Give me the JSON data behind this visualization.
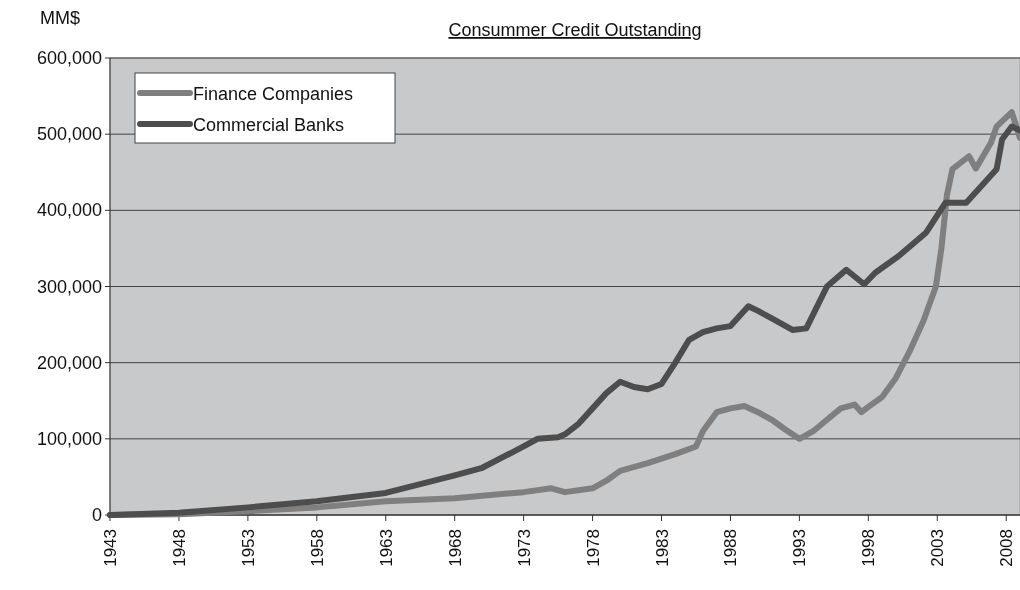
{
  "chart_data": {
    "type": "line",
    "title": "Consummer Credit Outstanding",
    "ylabel": "MM$",
    "xlim": [
      1943,
      2009
    ],
    "xticks": [
      1943,
      1948,
      1953,
      1958,
      1963,
      1968,
      1973,
      1978,
      1983,
      1988,
      1993,
      1998,
      2003,
      2008
    ],
    "ylim": [
      0,
      600000
    ],
    "yticks": [
      {
        "value": 0,
        "label": "0"
      },
      {
        "value": 100000,
        "label": "100,000"
      },
      {
        "value": 200000,
        "label": "200,000"
      },
      {
        "value": 300000,
        "label": "300,000"
      },
      {
        "value": 400000,
        "label": "400,000"
      },
      {
        "value": 500000,
        "label": "500,000"
      },
      {
        "value": 600000,
        "label": "600,000"
      }
    ],
    "grid": "y",
    "legend": "top left",
    "marker": "none",
    "line_style": "solid",
    "series": [
      {
        "name": "Finance Companies",
        "color": "#7f7f7f",
        "x": [
          1943,
          1948,
          1953,
          1958,
          1963,
          1968,
          1973,
          1975,
          1976,
          1978,
          1979,
          1980,
          1982,
          1984,
          1985.5,
          1986,
          1987,
          1988,
          1989,
          1990,
          1991,
          1992,
          1993,
          1994,
          1995,
          1996,
          1997,
          1997.5,
          1998,
          1999,
          2000,
          2001,
          2002,
          2002.9,
          2003.3,
          2003.7,
          2004.1,
          2005.3,
          2005.8,
          2006.9,
          2007.3,
          2008.4,
          2009
        ],
        "values": [
          0,
          1000,
          5000,
          10000,
          18000,
          22000,
          30000,
          35000,
          30000,
          35000,
          45000,
          58000,
          68000,
          80000,
          90000,
          110000,
          135000,
          140000,
          143000,
          135000,
          125000,
          112000,
          100000,
          110000,
          125000,
          140000,
          145000,
          135000,
          142000,
          155000,
          180000,
          215000,
          255000,
          300000,
          350000,
          420000,
          454000,
          471000,
          455000,
          489000,
          510000,
          529000,
          495000
        ]
      },
      {
        "name": "Commercial Banks",
        "color": "#4d4d4d",
        "x": [
          1943,
          1948,
          1953,
          1958,
          1963,
          1968,
          1970,
          1973,
          1974,
          1975.5,
          1976,
          1977,
          1978,
          1979,
          1980,
          1981,
          1982,
          1983,
          1984,
          1985,
          1986,
          1987,
          1988,
          1989.3,
          1990,
          1991,
          1992.5,
          1993.5,
          1995,
          1996.4,
          1997.7,
          1998.5,
          2000.2,
          2002.2,
          2003.6,
          2005.1,
          2006.2,
          2007.3,
          2007.7,
          2008.4,
          2009
        ],
        "values": [
          0,
          3000,
          10000,
          18000,
          29000,
          52000,
          62000,
          90000,
          100000,
          102000,
          106000,
          120000,
          140000,
          160000,
          175000,
          168000,
          165000,
          172000,
          200000,
          230000,
          240000,
          245000,
          248000,
          274000,
          268000,
          258000,
          243000,
          245000,
          300000,
          322000,
          303000,
          318000,
          340000,
          371000,
          410000,
          410000,
          432000,
          454000,
          493000,
          510000,
          505000
        ]
      }
    ]
  }
}
